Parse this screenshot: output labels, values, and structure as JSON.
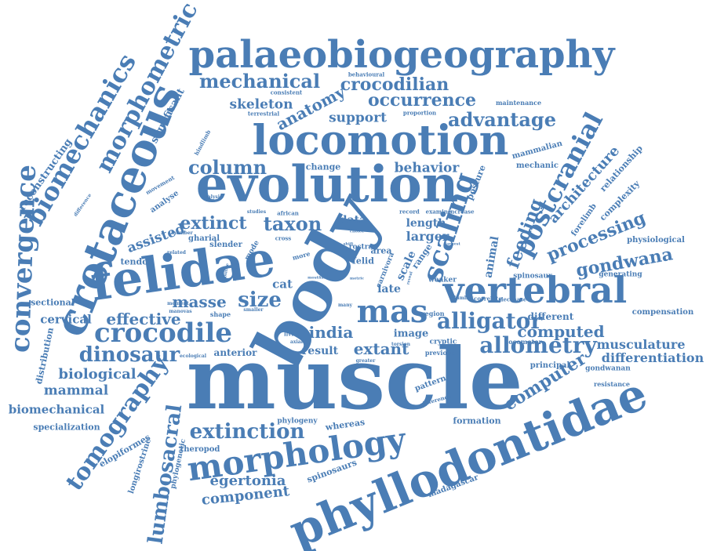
{
  "cloud": {
    "color": "#4a7db5",
    "words": {
      "muscle": "muscle",
      "body": "body",
      "felidae": "felidae",
      "phyllodontidae": "phyllodontidae",
      "evolution": "evolution",
      "locomotion": "locomotion",
      "palaeobiogeography": "palaeobiogeography",
      "cretaceous": "cretaceous",
      "vertebral": "vertebral",
      "morphology": "morphology",
      "crocodile": "crocodile",
      "mas": "mas",
      "biomechanics": "biomechanics",
      "morphometric": "morphometric",
      "convergence": "convergence",
      "scaling": "scaling",
      "postcranial": "postcranial",
      "alligator": "alligator",
      "allometry": "allometry",
      "tomography": "tomography",
      "dinosaur": "dinosaur",
      "lumbosacral": "lumbosacral",
      "extinction": "extinction",
      "mechanical": "mechanical",
      "crocodilian": "crocodilian",
      "occurrence": "occurrence",
      "advantage": "advantage",
      "anatomy": "anatomy",
      "column": "column",
      "extinct": "extinct",
      "taxon": "taxon",
      "size": "size",
      "masse": "masse",
      "effective": "effective",
      "india": "india",
      "extant": "extant",
      "computed": "computed",
      "computer": "computer",
      "processing": "processing",
      "gondwana": "gondwana",
      "feeding": "feeding",
      "architecture": "architecture",
      "musculature": "musculature",
      "differentiation": "differentiation",
      "egertonia": "egertonia",
      "component": "component",
      "mammal": "mammal",
      "biological": "biological",
      "biomechanical": "biomechanical",
      "cervical": "cervical",
      "support": "support",
      "skeleton": "skeleton",
      "behavior": "behavior",
      "assisted": "assisted",
      "reconstructing": "reconstructing",
      "significant": "significant",
      "larger": "larger",
      "length": "length",
      "data": "data",
      "late": "late",
      "image": "image",
      "result": "result",
      "cat": "cat",
      "different": "different",
      "anterior": "anterior",
      "sectional": "sectional",
      "tendon": "tendon",
      "specialization": "specialization",
      "elopiformes": "elopiformes",
      "spinosaurs": "spinosaurs",
      "madagascar": "madagascar",
      "theropod": "theropod",
      "formation": "formation",
      "pattern": "pattern",
      "distribution": "distribution",
      "longirostrine": "longirostrine",
      "phylogenetic": "phylogenetic",
      "phylogeny": "phylogeny",
      "whereas": "whereas",
      "mechanic": "mechanic",
      "mammalian": "mammalian",
      "relationship": "relationship",
      "complexity": "complexity",
      "forelimb": "forelimb",
      "physiological": "physiological",
      "compensation": "compensation",
      "principal": "principal",
      "gondwanan": "gondwanan",
      "resistance": "resistance",
      "generating": "generating",
      "spinosaur": "spinosaur",
      "locomotor": "locomotor",
      "animal": "animal",
      "posture": "posture",
      "range": "range",
      "scale": "scale",
      "area": "area",
      "rostra": "rostra",
      "felid": "felid",
      "carnivora": "carnivora",
      "weaker": "weaker",
      "region": "region",
      "cryptic": "cryptic",
      "previous": "previous",
      "torsion": "torsion",
      "greater": "greater",
      "inference": "inference",
      "lumbar": "lumbar",
      "correlate": "correlate",
      "decrease": "decrease",
      "increase": "increase",
      "record": "record",
      "examine": "examine",
      "african": "african",
      "studies": "studies",
      "mode": "mode",
      "more": "more",
      "cross": "cross",
      "gharial": "gharial",
      "slender": "slender",
      "related": "related",
      "member": "member",
      "analyse": "analyse",
      "movement": "movement",
      "difference": "difference",
      "hindlimb": "hindlimb",
      "analysis": "analysis",
      "change": "change",
      "terrestrial": "terrestrial",
      "consistent": "consistent",
      "behavioural": "behavioural",
      "proportion": "proportion",
      "maintenance": "maintenance",
      "moment": "moment",
      "manovas": "manovas",
      "shape": "shape",
      "smaller": "smaller",
      "ecological": "ecological",
      "many": "many",
      "axial": "axial",
      "living": "living",
      "positive": "positive",
      "smallest": "smallest",
      "metric": "metric",
      "choice": "choice",
      "largest": "largest",
      "fish": "fish",
      "most": "most",
      "shift": "shift",
      "clade": "clade",
      "reveal": "reveal"
    }
  }
}
